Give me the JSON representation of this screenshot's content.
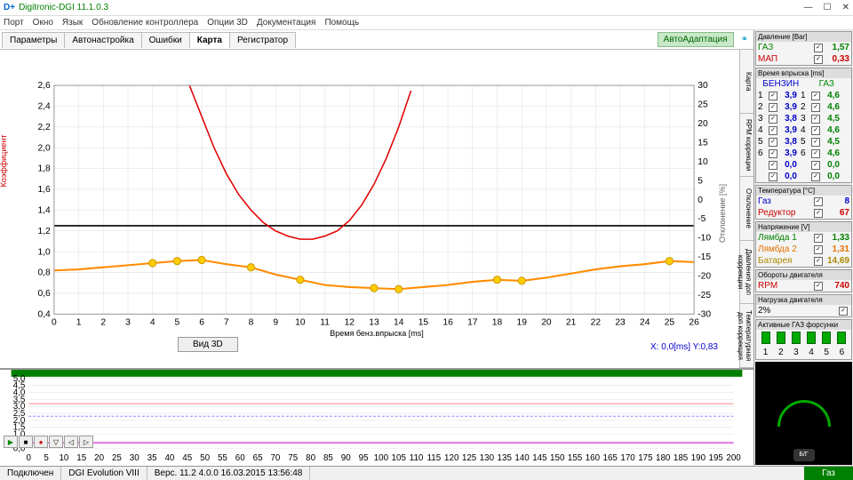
{
  "window": {
    "title": "Digitronic-DGI 11.1.0.3",
    "logo": "D+"
  },
  "menu": [
    "Порт",
    "Окно",
    "Язык",
    "Обновление контроллера",
    "Опции 3D",
    "Документация",
    "Помощь"
  ],
  "tabs": [
    "Параметры",
    "Автонастройка",
    "Ошибки",
    "Карта",
    "Регистратор"
  ],
  "activeTab": 3,
  "autoAdapt": "АвтоАдаптация",
  "chart": {
    "xlabel": "Время бенз.впрыска [ms]",
    "ylabel": "Коэффициент",
    "ylabel2": "Отклонение [%]",
    "xmin": 0,
    "xmax": 26,
    "xtick": 1,
    "ymin": 0.4,
    "ymax": 2.6,
    "ytick": 0.2,
    "y2min": -30,
    "y2max": 30,
    "y2tick": 5,
    "orange": {
      "color": "#ff8c00",
      "pts": [
        [
          0,
          0.82
        ],
        [
          1,
          0.83
        ],
        [
          2,
          0.85
        ],
        [
          3,
          0.87
        ],
        [
          4,
          0.89
        ],
        [
          5,
          0.91
        ],
        [
          6,
          0.92
        ],
        [
          7,
          0.88
        ],
        [
          8,
          0.85
        ],
        [
          9,
          0.78
        ],
        [
          10,
          0.73
        ],
        [
          11,
          0.68
        ],
        [
          12,
          0.66
        ],
        [
          13,
          0.65
        ],
        [
          14,
          0.64
        ],
        [
          15,
          0.66
        ],
        [
          16,
          0.68
        ],
        [
          17,
          0.71
        ],
        [
          18,
          0.73
        ],
        [
          19,
          0.72
        ],
        [
          20,
          0.75
        ],
        [
          21,
          0.79
        ],
        [
          22,
          0.83
        ],
        [
          23,
          0.86
        ],
        [
          24,
          0.88
        ],
        [
          25,
          0.91
        ],
        [
          26,
          0.9
        ]
      ]
    },
    "markers": {
      "color": "#ffcc00",
      "pts": [
        [
          4,
          0.89
        ],
        [
          5,
          0.91
        ],
        [
          6,
          0.92
        ],
        [
          8,
          0.85
        ],
        [
          10,
          0.73
        ],
        [
          13,
          0.65
        ],
        [
          14,
          0.64
        ],
        [
          18,
          0.73
        ],
        [
          19,
          0.72
        ],
        [
          25,
          0.91
        ]
      ]
    },
    "red": {
      "color": "#e00000",
      "pts": [
        [
          5.5,
          2.6
        ],
        [
          6,
          2.3
        ],
        [
          6.5,
          2.0
        ],
        [
          7,
          1.75
        ],
        [
          7.5,
          1.55
        ],
        [
          8,
          1.4
        ],
        [
          8.5,
          1.28
        ],
        [
          9,
          1.2
        ],
        [
          9.5,
          1.15
        ],
        [
          10,
          1.12
        ],
        [
          10.5,
          1.12
        ],
        [
          11,
          1.15
        ],
        [
          11.5,
          1.2
        ],
        [
          12,
          1.3
        ],
        [
          12.5,
          1.45
        ],
        [
          13,
          1.65
        ],
        [
          13.5,
          1.9
        ],
        [
          14,
          2.2
        ],
        [
          14.5,
          2.55
        ]
      ]
    },
    "refline": 1.25
  },
  "btn3d": "Вид 3D",
  "coord": "X: 0,0[ms] Y:0,83",
  "sidetabs": [
    "Карта",
    "RPM коррекции",
    "Отклонение",
    "Давления доп коррекции",
    "Температурная доп коррекция"
  ],
  "strip": {
    "xmin": 0,
    "xmax": 200,
    "xtick": 5,
    "ymax": 5,
    "ytick": 0.5,
    "controls": [
      "▶",
      "■",
      "●",
      "▽",
      "◁",
      "▷"
    ]
  },
  "right": {
    "pressure": {
      "hdr": "Давление [Bar]",
      "rows": [
        {
          "l": "ГАЗ",
          "v": "1,57",
          "c": "c-green"
        },
        {
          "l": "МАП",
          "v": "0,33",
          "c": "c-red"
        }
      ]
    },
    "injection": {
      "hdr": "Время впрыска [ms]",
      "lh": "БЕНЗИН",
      "rh": "ГАЗ",
      "rows": [
        [
          "1",
          "3,9",
          "1",
          "4,6"
        ],
        [
          "2",
          "3,9",
          "2",
          "4,6"
        ],
        [
          "3",
          "3,8",
          "3",
          "4,5"
        ],
        [
          "4",
          "3,9",
          "4",
          "4,6"
        ],
        [
          "5",
          "3,8",
          "5",
          "4,5"
        ],
        [
          "6",
          "3,9",
          "6",
          "4,6"
        ],
        [
          "",
          "0,0",
          "",
          "0,0"
        ],
        [
          "",
          "0,0",
          "",
          "0,0"
        ]
      ]
    },
    "temp": {
      "hdr": "Температура [°C]",
      "rows": [
        {
          "l": "Газ",
          "v": "8",
          "c": "c-blue"
        },
        {
          "l": "Редуктор",
          "v": "67",
          "c": "c-red"
        }
      ]
    },
    "voltage": {
      "hdr": "Напряжение [V]",
      "rows": [
        {
          "l": "Лямбда 1",
          "v": "1,33",
          "c": "c-green"
        },
        {
          "l": "Лямбда 2",
          "v": "1,31",
          "c": "c-orange"
        },
        {
          "l": "Батарея",
          "v": "14,69",
          "c": "c-yellow"
        }
      ]
    },
    "rpm": {
      "hdr": "Обороты двигателя",
      "rows": [
        {
          "l": "RPM",
          "v": "740",
          "c": "c-red"
        }
      ]
    },
    "load": {
      "hdr": "Нагрузка двигателя",
      "v": "2%"
    },
    "injectors": {
      "hdr": "Активные ГАЗ форсунки",
      "n": 6
    }
  },
  "status": {
    "conn": "Подключен",
    "dev": "DGI Evolution VIII",
    "ver": "Верс. 11.2  4.0.0   16.03.2015 13:56:48",
    "mode": "Газ"
  }
}
